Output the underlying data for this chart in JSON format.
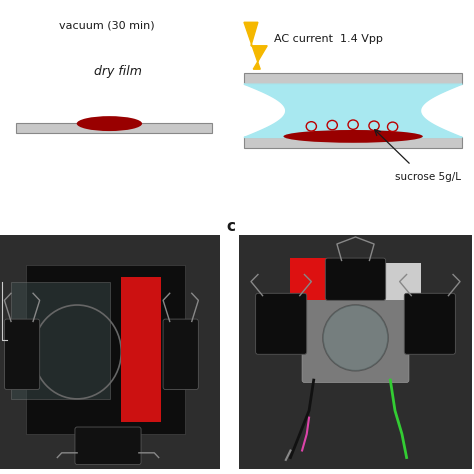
{
  "panel_a_label": "vacuum (30 min)",
  "panel_b_label": "AC current  1.4 Vpp",
  "dry_film_label": "dry film",
  "sucrose_label": "sucrose 5g/L",
  "panel_c_label": "c",
  "bg_color": "#ffffff",
  "plate_color": "#c8c8c8",
  "plate_edge_color": "#888888",
  "film_color": "#990000",
  "liquid_color": "#a8e8f0",
  "vesicle_color": "#bb0000",
  "bolt_color": "#f5b800",
  "text_color": "#1a1a1a",
  "arrow_color": "#1a1a1a",
  "photo_bg": "#2a2a2a"
}
